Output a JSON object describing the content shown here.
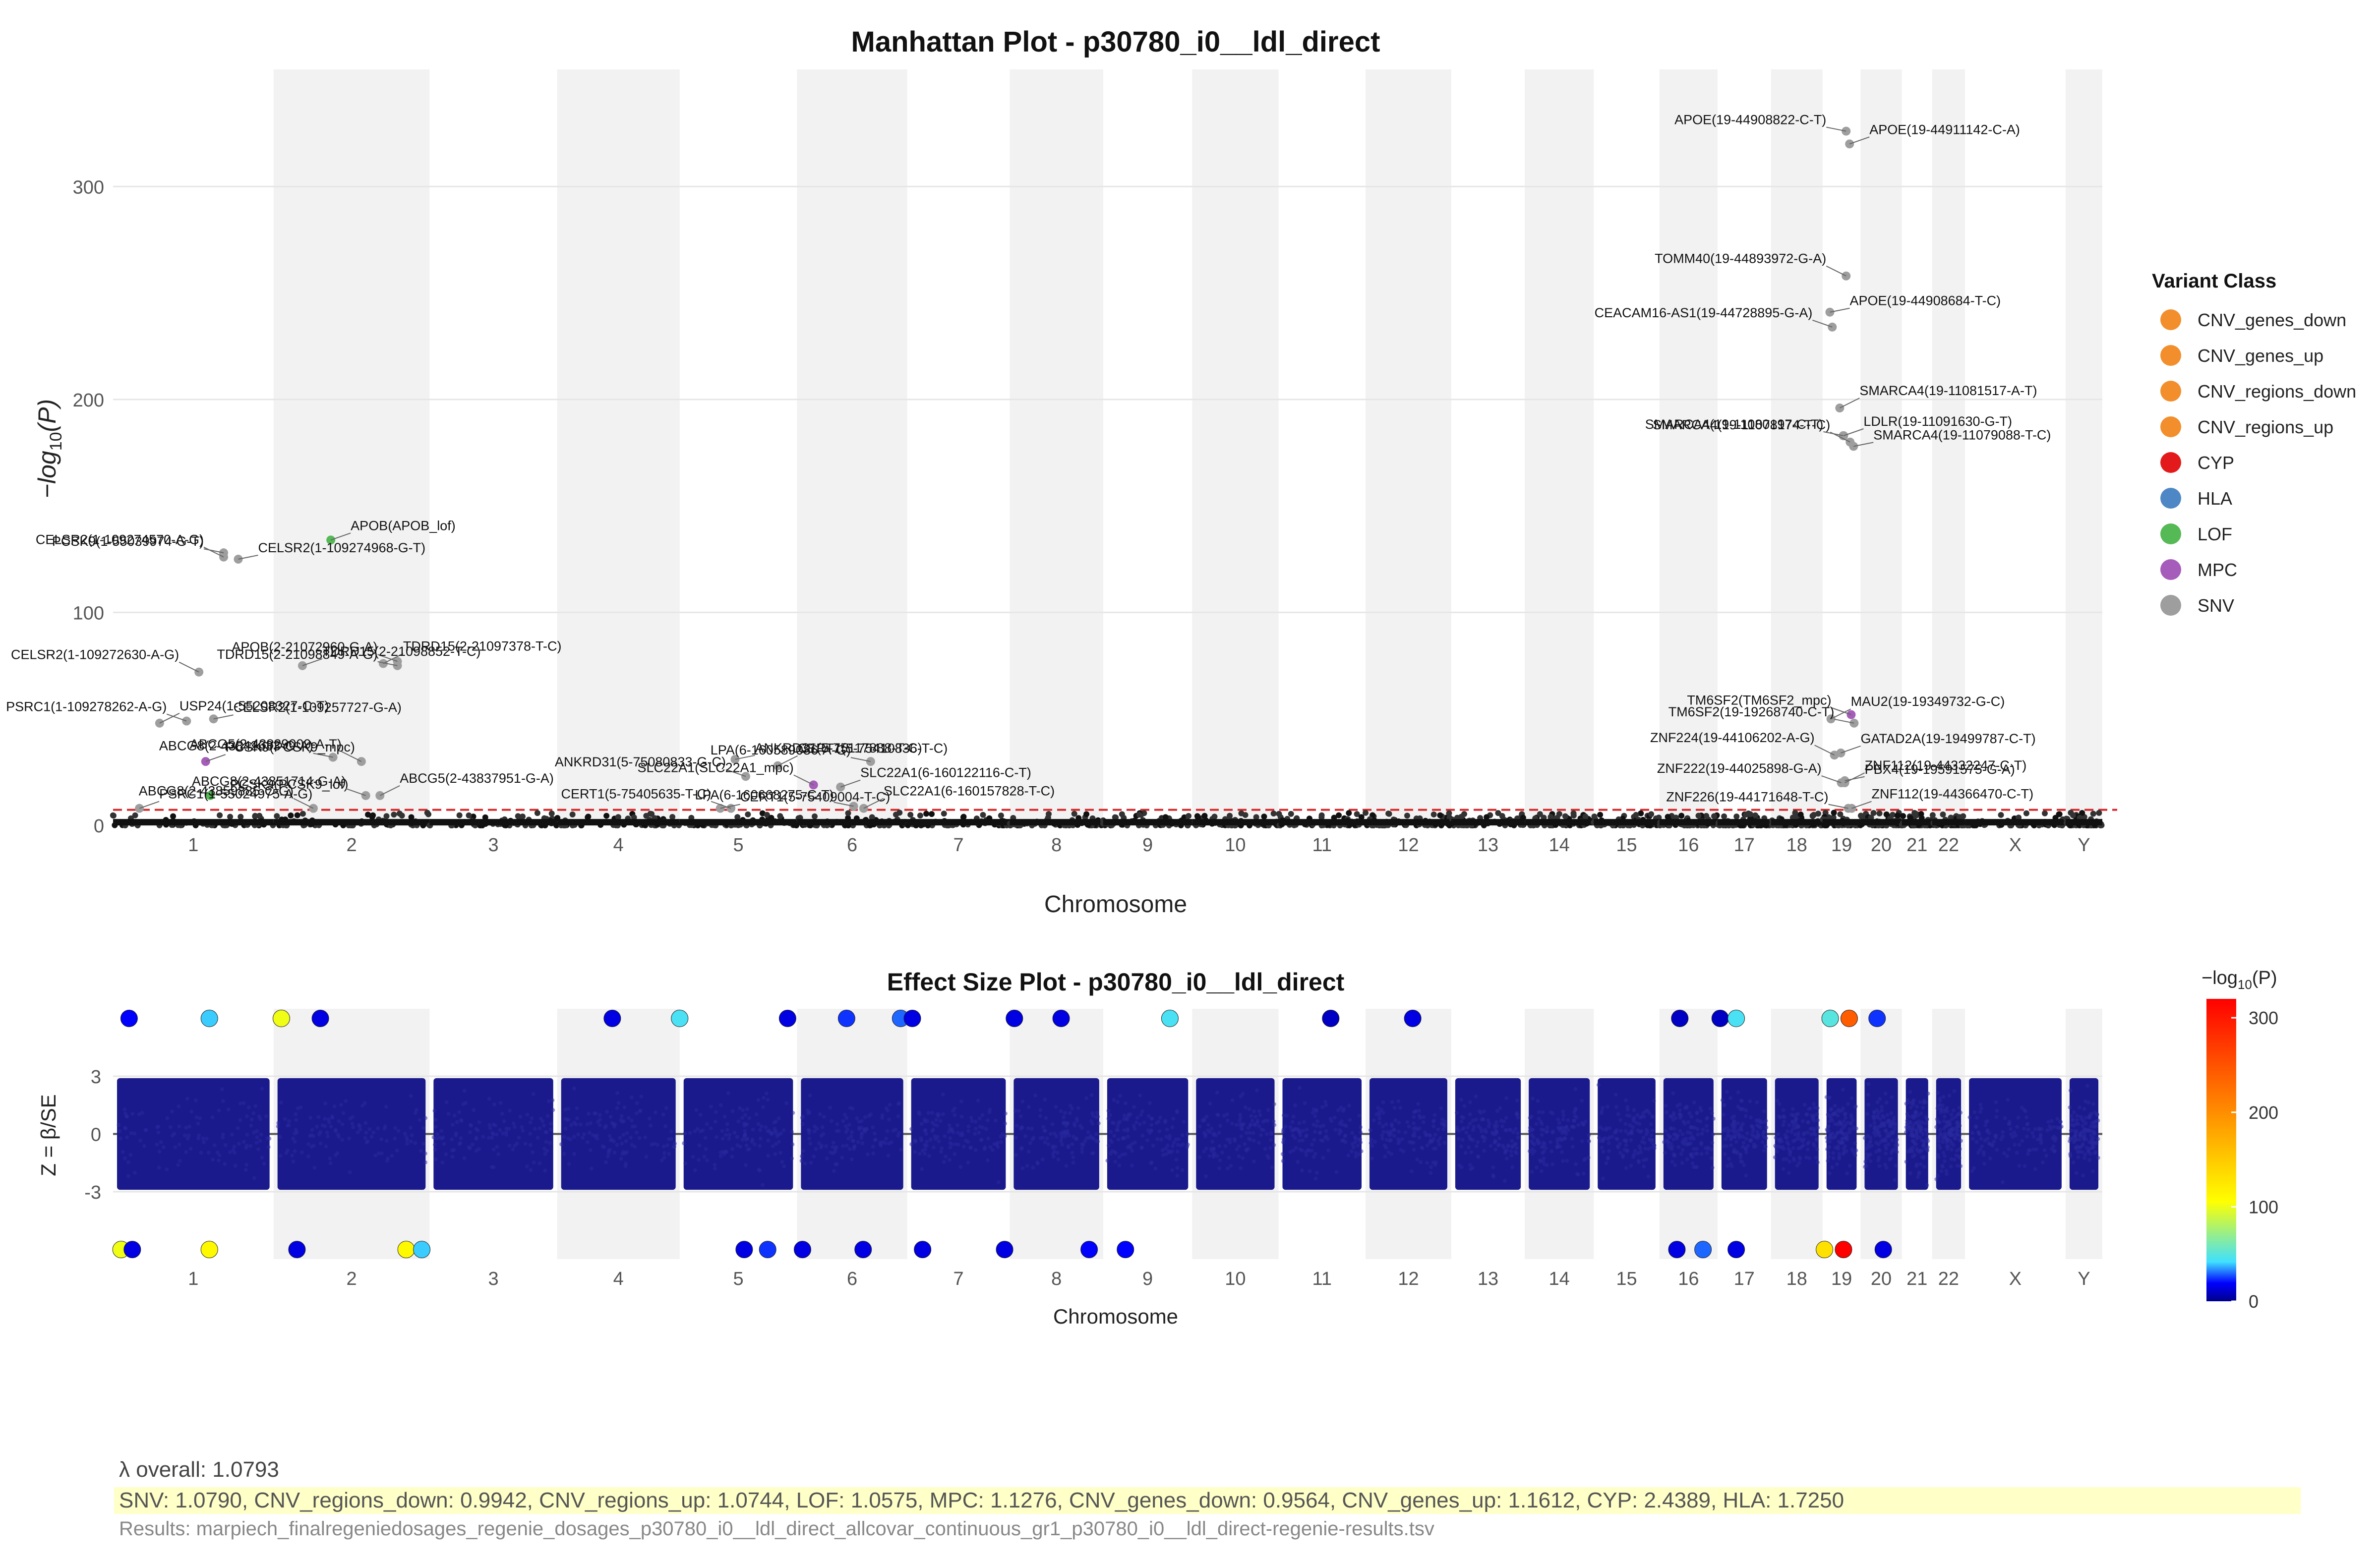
{
  "manhattan": {
    "title": "Manhattan Plot - p30780_i0__ldl_direct",
    "xlabel": "Chromosome",
    "ylabel_prefix": "−log",
    "ylabel_sub": "10",
    "ylabel_suffix": "(P)",
    "legend_title": "Variant Class",
    "legend": [
      {
        "name": "CNV_genes_down",
        "color": "#f28e2b"
      },
      {
        "name": "CNV_genes_up",
        "color": "#f28e2b"
      },
      {
        "name": "CNV_regions_down",
        "color": "#f28e2b"
      },
      {
        "name": "CNV_regions_up",
        "color": "#f28e2b"
      },
      {
        "name": "CYP",
        "color": "#e31a1c"
      },
      {
        "name": "HLA",
        "color": "#4e87c6"
      },
      {
        "name": "LOF",
        "color": "#55b955"
      },
      {
        "name": "MPC",
        "color": "#a65cba"
      },
      {
        "name": "SNV",
        "color": "#9e9e9e"
      }
    ]
  },
  "effect": {
    "title": "Effect Size Plot - p30780_i0__ldl_direct",
    "xlabel": "Chromosome",
    "ylabel": "Z = β/SE",
    "colorbar_title_prefix": "−log",
    "colorbar_title_sub": "10",
    "colorbar_title_suffix": "(P)",
    "colorbar_ticks": [
      "0",
      "100",
      "200",
      "300"
    ]
  },
  "chart_data": [
    {
      "type": "scatter",
      "title": "Manhattan Plot - p30780_i0__ldl_direct",
      "xlabel": "Chromosome",
      "ylabel": "−log10(P)",
      "ylim": [
        0,
        355
      ],
      "yticks": [
        0,
        100,
        200,
        300
      ],
      "grid": true,
      "legend_position": "right",
      "categories": [
        "1",
        "2",
        "3",
        "4",
        "5",
        "6",
        "7",
        "8",
        "9",
        "10",
        "11",
        "12",
        "13",
        "14",
        "15",
        "16",
        "17",
        "18",
        "19",
        "20",
        "21",
        "22",
        "X",
        "Y"
      ],
      "chromosome_lengths_mb": [
        249,
        242,
        198,
        190,
        182,
        171,
        159,
        145,
        138,
        134,
        135,
        133,
        114,
        107,
        102,
        90,
        83,
        80,
        59,
        64,
        47,
        51,
        156,
        57
      ],
      "significance_line": 7.3,
      "annotations": [
        {
          "label": "PCSK9(1-55039974-G-T)",
          "chr": 1,
          "y": 128
        },
        {
          "label": "APOB(APOB_lof)",
          "chr": 2,
          "y": 134
        },
        {
          "label": "CELSR2(1-109274570-A-G)",
          "chr": 1,
          "y": 126
        },
        {
          "label": "CELSR2(1-109274968-G-T)",
          "chr": 1,
          "y": 125
        },
        {
          "label": "APOB(2-21072960-G-A)",
          "chr": 2,
          "y": 77
        },
        {
          "label": "TDRD15(2-21097378-T-C)",
          "chr": 2,
          "y": 76
        },
        {
          "label": "TDRD15(2-21098849-A-G)",
          "chr": 2,
          "y": 75
        },
        {
          "label": "TDRD15(2-21098852-T-C)",
          "chr": 2,
          "y": 75
        },
        {
          "label": "CELSR2(1-109272630-A-G)",
          "chr": 1,
          "y": 72
        },
        {
          "label": "CELSR2(1-109257727-G-A)",
          "chr": 1,
          "y": 50
        },
        {
          "label": "PSRC1(1-109278262-A-G)",
          "chr": 1,
          "y": 49
        },
        {
          "label": "USP24(1-55208327-C-T)",
          "chr": 1,
          "y": 48
        },
        {
          "label": "ABCG8(2-43842633-G-A)",
          "chr": 2,
          "y": 32
        },
        {
          "label": "PCSK9(PCSK9_mpc)",
          "chr": 1,
          "y": 30
        },
        {
          "label": "ABCG5(2-43829009-A-T)",
          "chr": 2,
          "y": 30
        },
        {
          "label": "ANKRD31(5-75117888-T-C)",
          "chr": 5,
          "y": 31
        },
        {
          "label": "ANKRD31(5-75080833-G-C)",
          "chr": 5,
          "y": 23
        },
        {
          "label": "CERT1(5-75410836-T-C)",
          "chr": 5,
          "y": 28
        },
        {
          "label": "LPA(6-160589086-A-G)",
          "chr": 6,
          "y": 30
        },
        {
          "label": "SLC22A1(6-160122116-C-T)",
          "chr": 6,
          "y": 18
        },
        {
          "label": "SLC22A1(SLC22A1_mpc)",
          "chr": 6,
          "y": 19
        },
        {
          "label": "PCSK9(PCSK9_lof)",
          "chr": 1,
          "y": 14
        },
        {
          "label": "ABCG8(2-43851714-G-A)",
          "chr": 2,
          "y": 14
        },
        {
          "label": "ABCG5(2-43837951-G-A)",
          "chr": 2,
          "y": 14
        },
        {
          "label": "LPA(6-160668275-C-T)",
          "chr": 6,
          "y": 9
        },
        {
          "label": "PSRC1(1-55024975-A-G)",
          "chr": 1,
          "y": 8
        },
        {
          "label": "ABCG8(2-43859885-C-G)",
          "chr": 2,
          "y": 8
        },
        {
          "label": "CERT1(5-75409004-T-C)",
          "chr": 5,
          "y": 8
        },
        {
          "label": "CERT1(5-75405635-T-C)",
          "chr": 5,
          "y": 8
        },
        {
          "label": "SLC22A1(6-160157828-T-C)",
          "chr": 6,
          "y": 8
        },
        {
          "label": "APOE(19-44908822-C-T)",
          "chr": 19,
          "y": 326
        },
        {
          "label": "APOE(19-44911142-C-A)",
          "chr": 19,
          "y": 320
        },
        {
          "label": "TOMM40(19-44893972-G-A)",
          "chr": 19,
          "y": 258
        },
        {
          "label": "APOE(19-44908684-T-C)",
          "chr": 19,
          "y": 241
        },
        {
          "label": "CEACAM16-AS1(19-44728895-G-A)",
          "chr": 19,
          "y": 234
        },
        {
          "label": "SMARCA4(19-11081517-A-T)",
          "chr": 19,
          "y": 196
        },
        {
          "label": "SMARCA4(19-11080197-C-T)",
          "chr": 19,
          "y": 183
        },
        {
          "label": "LDLR(19-11091630-G-T)",
          "chr": 19,
          "y": 183
        },
        {
          "label": "SMARCA4(19-11078174-T-C)",
          "chr": 19,
          "y": 180
        },
        {
          "label": "SMARCA4(19-11079088-T-C)",
          "chr": 19,
          "y": 178
        },
        {
          "label": "TM6SF2(TM6SF2_mpc)",
          "chr": 19,
          "y": 52
        },
        {
          "label": "MAU2(19-19349732-G-C)",
          "chr": 19,
          "y": 50
        },
        {
          "label": "TM6SF2(19-19268740-C-T)",
          "chr": 19,
          "y": 48
        },
        {
          "label": "GATAD2A(19-19499787-C-T)",
          "chr": 19,
          "y": 34
        },
        {
          "label": "ZNF224(19-44106202-A-G)",
          "chr": 19,
          "y": 33
        },
        {
          "label": "PBX4(19-19591575-G-A)",
          "chr": 19,
          "y": 21
        },
        {
          "label": "ZNF222(19-44025898-G-A)",
          "chr": 19,
          "y": 20
        },
        {
          "label": "ZNF112(19-44332247-C-T)",
          "chr": 19,
          "y": 20
        },
        {
          "label": "ZNF226(19-44171648-T-C)",
          "chr": 19,
          "y": 8
        },
        {
          "label": "ZNF112(19-44366470-C-T)",
          "chr": 19,
          "y": 8
        }
      ]
    },
    {
      "type": "scatter",
      "title": "Effect Size Plot - p30780_i0__ldl_direct",
      "xlabel": "Chromosome",
      "ylabel": "Z = β/SE",
      "ylim": [
        -6.5,
        6.5
      ],
      "yticks": [
        -3,
        0,
        3
      ],
      "grid": true,
      "colorbar": {
        "title": "−log10(P)",
        "range": [
          0,
          320
        ],
        "ticks": [
          0,
          100,
          200,
          300
        ],
        "colors": [
          "#00008b",
          "#0000ff",
          "#40e0ff",
          "#ffff00",
          "#ff8000",
          "#ff0000"
        ]
      },
      "categories": [
        "1",
        "2",
        "3",
        "4",
        "5",
        "6",
        "7",
        "8",
        "9",
        "10",
        "11",
        "12",
        "13",
        "14",
        "15",
        "16",
        "17",
        "18",
        "19",
        "20",
        "21",
        "22",
        "X",
        "Y"
      ],
      "capped_points_top": [
        {
          "chr": 1,
          "pos": 0.1,
          "p": 20
        },
        {
          "chr": 1,
          "pos": 0.6,
          "p": 40
        },
        {
          "chr": 2,
          "pos": 0.05,
          "p": 100
        },
        {
          "chr": 2,
          "pos": 0.3,
          "p": 15
        },
        {
          "chr": 4,
          "pos": 0.45,
          "p": 15
        },
        {
          "chr": 5,
          "pos": 0.0,
          "p": 45
        },
        {
          "chr": 5,
          "pos": 0.92,
          "p": 15
        },
        {
          "chr": 6,
          "pos": 0.45,
          "p": 25
        },
        {
          "chr": 6,
          "pos": 0.94,
          "p": 30
        },
        {
          "chr": 7,
          "pos": 0.05,
          "p": 15
        },
        {
          "chr": 8,
          "pos": 0.05,
          "p": 15
        },
        {
          "chr": 8,
          "pos": 0.55,
          "p": 15
        },
        {
          "chr": 9,
          "pos": 0.75,
          "p": 45
        },
        {
          "chr": 11,
          "pos": 0.6,
          "p": 10
        },
        {
          "chr": 12,
          "pos": 0.55,
          "p": 15
        },
        {
          "chr": 16,
          "pos": 0.35,
          "p": 10
        },
        {
          "chr": 17,
          "pos": 0.05,
          "p": 10
        },
        {
          "chr": 17,
          "pos": 0.35,
          "p": 45
        },
        {
          "chr": 19,
          "pos": 0.2,
          "p": 50
        },
        {
          "chr": 19,
          "pos": 0.7,
          "p": 240
        },
        {
          "chr": 20,
          "pos": 0.4,
          "p": 25
        }
      ],
      "capped_points_bottom": [
        {
          "chr": 1,
          "pos": 0.05,
          "p": 100
        },
        {
          "chr": 1,
          "pos": 0.12,
          "p": 15
        },
        {
          "chr": 1,
          "pos": 0.6,
          "p": 110
        },
        {
          "chr": 2,
          "pos": 0.15,
          "p": 15
        },
        {
          "chr": 2,
          "pos": 0.85,
          "p": 110
        },
        {
          "chr": 2,
          "pos": 0.95,
          "p": 40
        },
        {
          "chr": 5,
          "pos": 0.55,
          "p": 15
        },
        {
          "chr": 5,
          "pos": 0.75,
          "p": 25
        },
        {
          "chr": 6,
          "pos": 0.05,
          "p": 15
        },
        {
          "chr": 6,
          "pos": 0.6,
          "p": 15
        },
        {
          "chr": 7,
          "pos": 0.15,
          "p": 15
        },
        {
          "chr": 7,
          "pos": 0.95,
          "p": 15
        },
        {
          "chr": 8,
          "pos": 0.85,
          "p": 20
        },
        {
          "chr": 9,
          "pos": 0.25,
          "p": 20
        },
        {
          "chr": 16,
          "pos": 0.3,
          "p": 15
        },
        {
          "chr": 16,
          "pos": 0.75,
          "p": 30
        },
        {
          "chr": 17,
          "pos": 0.35,
          "p": 15
        },
        {
          "chr": 19,
          "pos": 0.05,
          "p": 130
        },
        {
          "chr": 19,
          "pos": 0.55,
          "p": 320
        },
        {
          "chr": 20,
          "pos": 0.55,
          "p": 15
        }
      ]
    }
  ],
  "footer": {
    "lambda_overall": "λ overall: 1.0793",
    "lambda_classes": "SNV: 1.0790, CNV_regions_down: 0.9942, CNV_regions_up: 1.0744, LOF: 1.0575, MPC: 1.1276, CNV_genes_down: 0.9564, CNV_genes_up: 1.1612, CYP: 2.4389, HLA: 1.7250",
    "results_file": "Results: marpiech_finalregeniedosages_regenie_dosages_p30780_i0__ldl_direct_allcovar_continuous_gr1_p30780_i0__ldl_direct-regenie-results.tsv"
  }
}
